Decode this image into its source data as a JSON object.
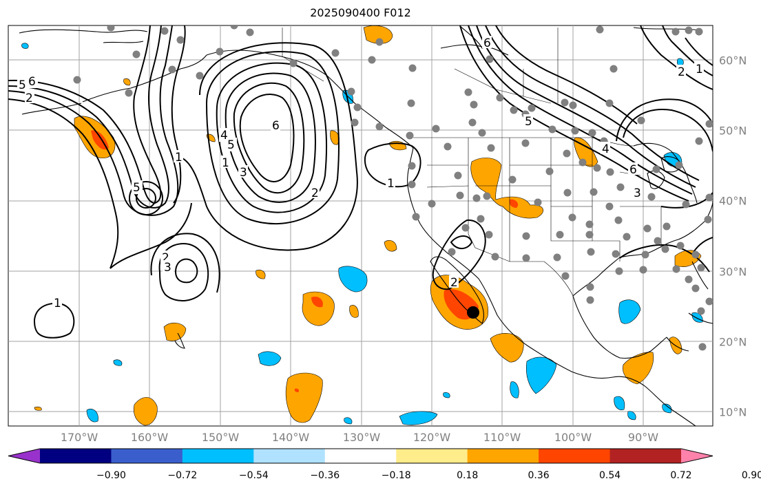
{
  "title": "2025090400 F012",
  "lon_labels": [
    "170°W",
    "160°W",
    "150°W",
    "140°W",
    "130°W",
    "120°W",
    "110°W",
    "100°W",
    "90°W"
  ],
  "lat_labels": [
    "60°N",
    "50°N",
    "40°N",
    "30°N",
    "20°N",
    "10°N"
  ],
  "colorbar": {
    "ticks": [
      "−0.90",
      "−0.72",
      "−0.54",
      "−0.36",
      "−0.18",
      "0.18",
      "0.36",
      "0.54",
      "0.72",
      "0.90"
    ],
    "colors": [
      "#9932cc",
      "#000080",
      "#3a5fcd",
      "#00bfff",
      "#b0e2ff",
      "#ffffff",
      "#ffec8b",
      "#ffa500",
      "#ff4500",
      "#b22222",
      "#ff82ab"
    ],
    "extend": "both"
  },
  "contour_labels": [
    "1",
    "2",
    "3",
    "4",
    "5",
    "6"
  ],
  "colors": {
    "positive_light": "#ffa500",
    "positive_strong": "#ff4500",
    "negative": "#00bfff",
    "stations": "#808080",
    "contour": "#000000"
  }
}
